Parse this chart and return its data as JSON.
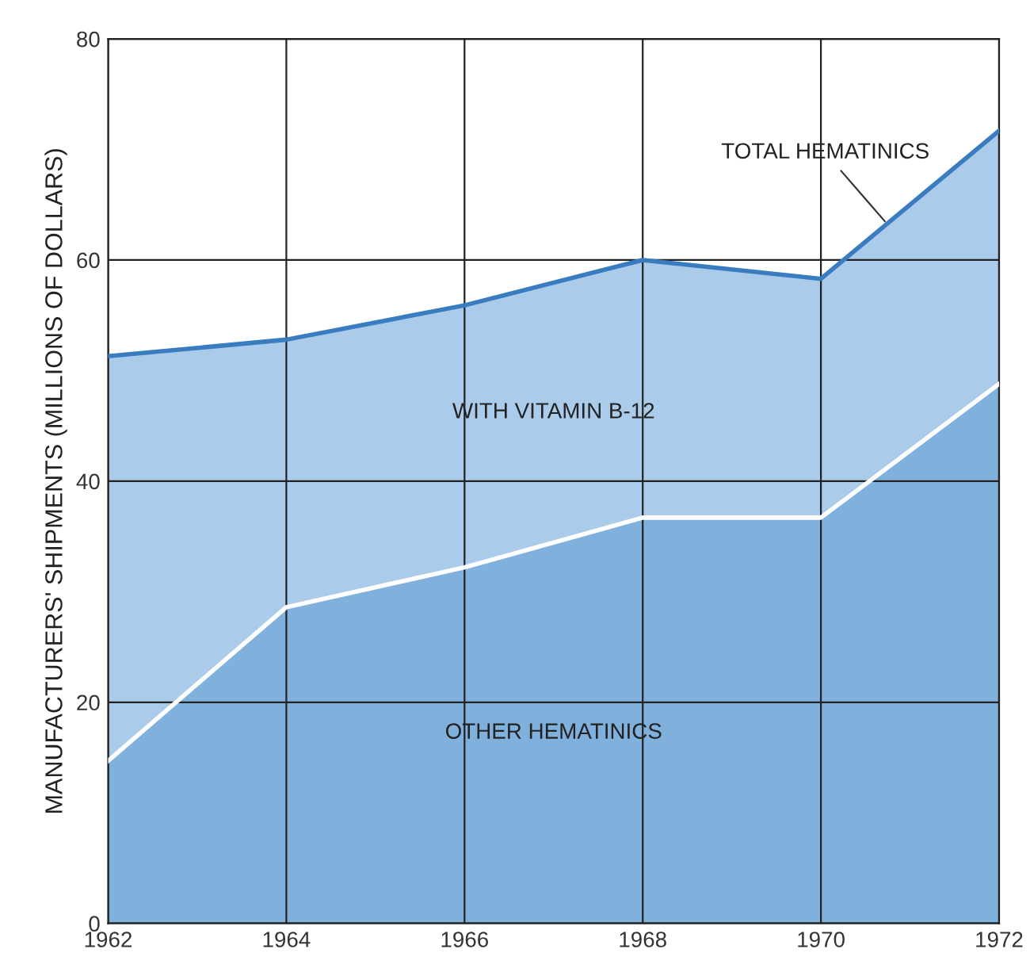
{
  "chart_data": {
    "type": "area",
    "stacked": true,
    "ylabel": "MANUFACTURERS' SHIPMENTS (MILLIONS OF DOLLARS)",
    "x": [
      1962,
      1964,
      1966,
      1968,
      1970,
      1972
    ],
    "series": [
      {
        "name": "OTHER HEMATINICS",
        "color": "#80b1dd",
        "values": [
          14.7,
          28.6,
          32.2,
          36.7,
          36.7,
          48.8
        ]
      },
      {
        "name": "WITH VITAMIN B-12",
        "color": "#abcbea",
        "values": [
          36.6,
          24.2,
          23.7,
          23.3,
          21.6,
          22.9
        ]
      }
    ],
    "annotations": [
      {
        "text": "TOTAL HEMATINICS",
        "x": 1970.75,
        "y": 63.2
      }
    ],
    "xlim": [
      1962,
      1972
    ],
    "xticks": [
      1962,
      1964,
      1966,
      1968,
      1970,
      1972
    ],
    "ylim": [
      0,
      80
    ],
    "yticks": [
      0,
      20,
      40,
      60,
      80
    ],
    "grid": true,
    "legend": false
  }
}
